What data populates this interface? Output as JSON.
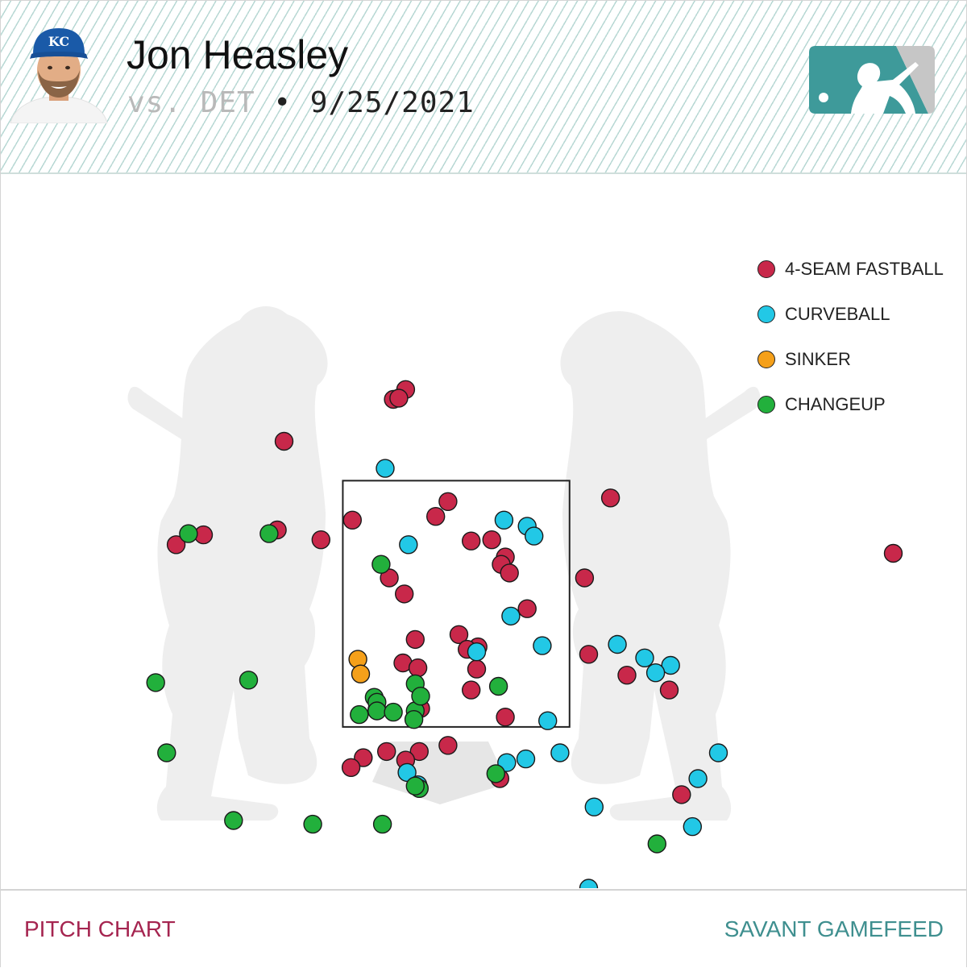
{
  "header": {
    "player_name": "Jon Heasley",
    "matchup": "vs. DET",
    "separator": "•",
    "date": "9/25/2021",
    "headshot_icon": "player-headshot-kc-cap",
    "logo_icon": "mlb-logo"
  },
  "colors": {
    "4-SEAM FASTBALL": "#c8284a",
    "CURVEBALL": "#22c8e6",
    "SINKER": "#f5a01a",
    "CHANGEUP": "#22b03c",
    "silhouette": "#eeeeee",
    "logo_teal": "#3e9a9a",
    "logo_gray": "#c6c6c6"
  },
  "chart_data": {
    "type": "scatter",
    "title": "",
    "xlabel": "",
    "ylabel": "",
    "x_units": "feet (horizontal plate location, catcher view)",
    "y_units": "feet above ground",
    "xlim": [
      -3.34,
      3.74
    ],
    "ylim": [
      0.19,
      5.99
    ],
    "strike_zone": {
      "x": [
        -0.83,
        0.83
      ],
      "y": [
        1.5,
        3.5
      ]
    },
    "legend": [
      "4-SEAM FASTBALL",
      "CURVEBALL",
      "SINKER",
      "CHANGEUP"
    ],
    "legend_position": "top-right",
    "series": [
      {
        "name": "4-SEAM FASTBALL",
        "points": [
          [
            -0.37,
            4.24
          ],
          [
            -0.46,
            4.16
          ],
          [
            -0.42,
            4.17
          ],
          [
            -1.26,
            3.82
          ],
          [
            1.13,
            3.36
          ],
          [
            -0.06,
            3.33
          ],
          [
            -0.15,
            3.21
          ],
          [
            -0.76,
            3.18
          ],
          [
            -0.99,
            3.02
          ],
          [
            -1.31,
            3.1
          ],
          [
            -1.85,
            3.06
          ],
          [
            -2.05,
            2.98
          ],
          [
            0.26,
            3.02
          ],
          [
            0.11,
            3.01
          ],
          [
            0.36,
            2.88
          ],
          [
            0.33,
            2.82
          ],
          [
            0.39,
            2.75
          ],
          [
            0.94,
            2.71
          ],
          [
            -0.49,
            2.71
          ],
          [
            -0.38,
            2.58
          ],
          [
            0.52,
            2.46
          ],
          [
            0.02,
            2.25
          ],
          [
            -0.3,
            2.21
          ],
          [
            0.16,
            2.15
          ],
          [
            0.08,
            2.13
          ],
          [
            -0.39,
            2.02
          ],
          [
            -0.28,
            1.98
          ],
          [
            0.15,
            1.97
          ],
          [
            0.97,
            2.09
          ],
          [
            1.25,
            1.92
          ],
          [
            0.11,
            1.8
          ],
          [
            0.36,
            1.58
          ],
          [
            1.56,
            1.8
          ],
          [
            -0.58,
            1.64
          ],
          [
            -0.26,
            1.65
          ],
          [
            -0.06,
            1.35
          ],
          [
            -0.68,
            1.25
          ],
          [
            -0.51,
            1.3
          ],
          [
            -0.27,
            1.3
          ],
          [
            -0.37,
            1.23
          ],
          [
            -0.77,
            1.17
          ],
          [
            0.32,
            1.08
          ],
          [
            1.65,
            0.95
          ],
          [
            3.2,
            2.91
          ]
        ]
      },
      {
        "name": "CURVEBALL",
        "points": [
          [
            -0.52,
            3.6
          ],
          [
            0.35,
            3.18
          ],
          [
            0.52,
            3.13
          ],
          [
            0.57,
            3.05
          ],
          [
            -0.35,
            2.98
          ],
          [
            0.4,
            2.4
          ],
          [
            0.63,
            2.16
          ],
          [
            1.18,
            2.17
          ],
          [
            1.38,
            2.06
          ],
          [
            1.57,
            2.0
          ],
          [
            1.46,
            1.94
          ],
          [
            0.15,
            2.11
          ],
          [
            0.67,
            1.55
          ],
          [
            0.76,
            1.29
          ],
          [
            0.51,
            1.24
          ],
          [
            0.37,
            1.21
          ],
          [
            -0.36,
            1.13
          ],
          [
            -0.28,
            1.03
          ],
          [
            1.92,
            1.29
          ],
          [
            1.77,
            1.08
          ],
          [
            1.01,
            0.85
          ],
          [
            1.73,
            0.69
          ],
          [
            0.97,
            0.19
          ]
        ]
      },
      {
        "name": "SINKER",
        "points": [
          [
            -0.72,
            2.05
          ],
          [
            -0.7,
            1.93
          ]
        ]
      },
      {
        "name": "CHANGEUP",
        "points": [
          [
            -1.96,
            3.07
          ],
          [
            -1.37,
            3.07
          ],
          [
            -0.55,
            2.82
          ],
          [
            -1.52,
            1.88
          ],
          [
            -2.2,
            1.86
          ],
          [
            -0.3,
            1.85
          ],
          [
            0.31,
            1.83
          ],
          [
            -0.6,
            1.74
          ],
          [
            -0.58,
            1.7
          ],
          [
            -0.3,
            1.63
          ],
          [
            -0.58,
            1.63
          ],
          [
            -0.26,
            1.75
          ],
          [
            -0.31,
            1.56
          ],
          [
            -0.46,
            1.62
          ],
          [
            -0.71,
            1.6
          ],
          [
            -2.12,
            1.29
          ],
          [
            0.29,
            1.12
          ],
          [
            -0.27,
            1.0
          ],
          [
            -0.3,
            1.02
          ],
          [
            -1.63,
            0.74
          ],
          [
            -1.05,
            0.71
          ],
          [
            -0.54,
            0.71
          ],
          [
            1.47,
            0.55
          ]
        ]
      }
    ]
  },
  "footer": {
    "left": "PITCH CHART",
    "right": "SAVANT GAMEFEED"
  }
}
